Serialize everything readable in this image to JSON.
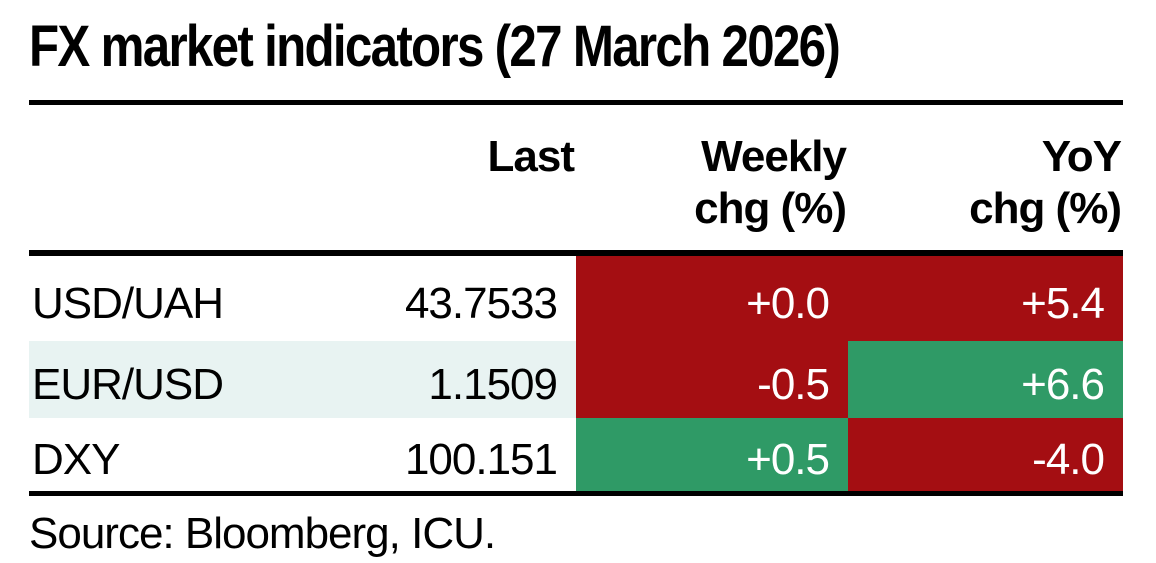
{
  "title": "FX market indicators (27 March 2026)",
  "source": "Source: Bloomberg, ICU.",
  "colors": {
    "red": "#a40e12",
    "green": "#2f9a66",
    "stripe": "#e8f3f2",
    "none": "",
    "rule_black": "#000000",
    "cell_text_white": "#ffffff"
  },
  "chart_data": {
    "type": "table",
    "title": "FX market indicators (27 March 2026)",
    "source": "Source: Bloomberg, ICU.",
    "legend_note": "cell background encodes sign: red = adverse/negative-colored change, green = positive-colored change",
    "columns": [
      {
        "id": "last",
        "line1": "Last",
        "line2": ""
      },
      {
        "id": "weekly",
        "line1": "Weekly",
        "line2": "chg (%)"
      },
      {
        "id": "yoy",
        "line1": "YoY",
        "line2": "chg (%)"
      }
    ],
    "rows": [
      {
        "pair": "USD/UAH",
        "last": "43.7533",
        "weekly": "+0.0",
        "yoy": "+5.4",
        "weekly_color": "red",
        "yoy_color": "red",
        "stripe_color": "none",
        "last_value": 43.7533,
        "weekly_chg_pct": 0.0,
        "yoy_chg_pct": 5.4
      },
      {
        "pair": "EUR/USD",
        "last": "1.1509",
        "weekly": "-0.5",
        "yoy": "+6.6",
        "weekly_color": "red",
        "yoy_color": "green",
        "stripe_color": "stripe",
        "last_value": 1.1509,
        "weekly_chg_pct": -0.5,
        "yoy_chg_pct": 6.6
      },
      {
        "pair": "DXY",
        "last": "100.151",
        "weekly": "+0.5",
        "yoy": "-4.0",
        "weekly_color": "green",
        "yoy_color": "red",
        "stripe_color": "none",
        "last_value": 100.151,
        "weekly_chg_pct": 0.5,
        "yoy_chg_pct": -4.0
      }
    ]
  }
}
